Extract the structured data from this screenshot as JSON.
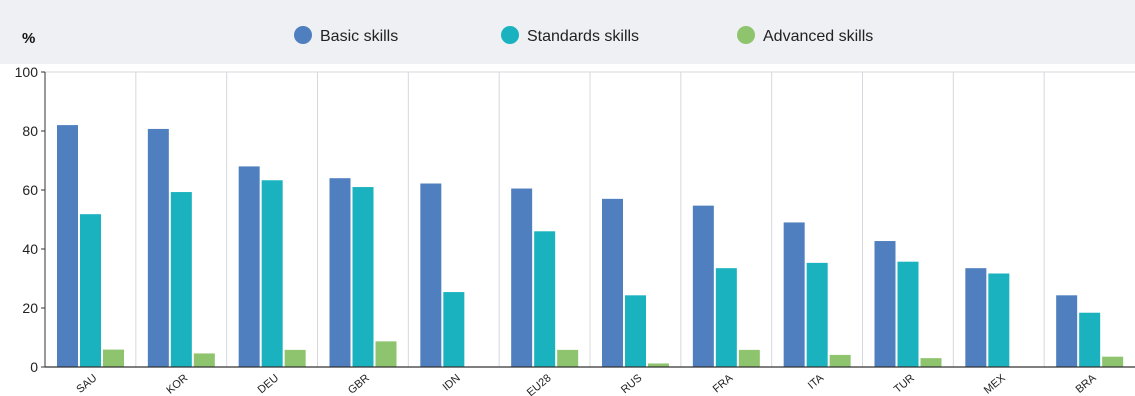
{
  "chart_data": {
    "type": "bar",
    "ylabel": "%",
    "ylim": [
      0,
      100
    ],
    "yticks": [
      0,
      20,
      40,
      60,
      80,
      100
    ],
    "grid": "vertical lines between categories",
    "legend_position": "top-center",
    "categories": [
      "SAU",
      "KOR",
      "DEU",
      "GBR",
      "IDN",
      "EU28",
      "RUS",
      "FRA",
      "ITA",
      "TUR",
      "MEX",
      "BRA"
    ],
    "series": [
      {
        "name": "Basic skills",
        "color": "#4f7fbf",
        "values": [
          82,
          80.7,
          68,
          64,
          62.2,
          60.5,
          57,
          54.7,
          49,
          42.7,
          33.5,
          24.3
        ]
      },
      {
        "name": "Standards skills",
        "color": "#1ab2bf",
        "values": [
          51.8,
          59.3,
          63.3,
          61,
          25.4,
          46,
          24.3,
          33.5,
          35.3,
          35.7,
          31.7,
          18.4
        ]
      },
      {
        "name": "Advanced skills",
        "color": "#8ec46e",
        "values": [
          5.9,
          4.6,
          5.8,
          8.7,
          0,
          5.8,
          1.2,
          5.8,
          4.1,
          3,
          0,
          3.5
        ]
      }
    ]
  }
}
